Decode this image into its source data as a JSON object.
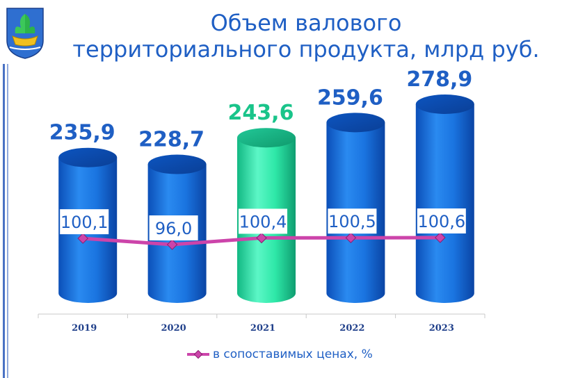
{
  "title_line1": "Объем валового",
  "title_line2": "территориального продукта, млрд руб.",
  "chart_data": {
    "type": "bar",
    "categories": [
      "2019",
      "2020",
      "2021",
      "2022",
      "2023"
    ],
    "series": [
      {
        "values": [
          235.9,
          228.7,
          243.6,
          259.6,
          278.9
        ],
        "value_labels": [
          "235,9",
          "228,7",
          "243,6",
          "259,6",
          "278,9"
        ],
        "highlight_index": 2
      },
      {
        "name": "в сопоставимых ценах, %",
        "type": "line",
        "values": [
          100.1,
          96.0,
          100.4,
          100.5,
          100.6
        ],
        "value_labels": [
          "100,1",
          "96,0",
          "100,4",
          "100,5",
          "100,6"
        ]
      }
    ],
    "legend_position": "bottom",
    "grid": false
  },
  "colors": {
    "bar": "#1a74e0",
    "bar_highlight": "#2ee8a8",
    "bar_label": "#1f5fc4",
    "bar_label_highlight": "#19c48a",
    "line": "#cc44aa",
    "line_label": "#1f5fc4",
    "title": "#1f5fc4"
  },
  "icons": {
    "emblem": "city-emblem-icon"
  }
}
